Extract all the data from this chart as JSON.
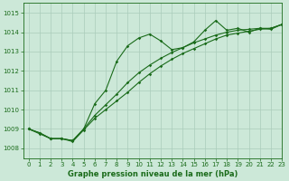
{
  "title": "Graphe pression niveau de la mer (hPa)",
  "bg_color": "#cce8d8",
  "grid_color": "#aaccbb",
  "line_color": "#1a6b1a",
  "xlim": [
    -0.5,
    23
  ],
  "ylim": [
    1007.5,
    1015.5
  ],
  "yticks": [
    1008,
    1009,
    1010,
    1011,
    1012,
    1013,
    1014,
    1015
  ],
  "xticks": [
    0,
    1,
    2,
    3,
    4,
    5,
    6,
    7,
    8,
    9,
    10,
    11,
    12,
    13,
    14,
    15,
    16,
    17,
    18,
    19,
    20,
    21,
    22,
    23
  ],
  "series1_x": [
    0,
    1,
    2,
    3,
    4,
    5,
    6,
    7,
    8,
    9,
    10,
    11,
    12,
    13,
    14,
    15,
    16,
    17,
    18,
    19,
    20,
    21,
    22,
    23
  ],
  "series1_y": [
    1009.0,
    1008.8,
    1008.5,
    1008.5,
    1008.4,
    1009.0,
    1010.3,
    1011.0,
    1012.5,
    1013.3,
    1013.7,
    1013.9,
    1013.55,
    1013.1,
    1013.2,
    1013.5,
    1014.1,
    1014.6,
    1014.1,
    1014.2,
    1014.0,
    1014.2,
    1014.15,
    1014.4
  ],
  "series2_x": [
    0,
    1,
    2,
    3,
    4,
    5,
    6,
    7,
    8,
    9,
    10,
    11,
    12,
    13,
    14,
    15,
    16,
    17,
    18,
    19,
    20,
    21,
    22,
    23
  ],
  "series2_y": [
    1009.0,
    1008.8,
    1008.5,
    1008.5,
    1008.4,
    1009.0,
    1009.7,
    1010.25,
    1010.8,
    1011.4,
    1011.9,
    1012.3,
    1012.65,
    1012.95,
    1013.2,
    1013.45,
    1013.65,
    1013.85,
    1014.0,
    1014.1,
    1014.15,
    1014.2,
    1014.2,
    1014.4
  ],
  "series3_x": [
    0,
    1,
    2,
    3,
    4,
    5,
    6,
    7,
    8,
    9,
    10,
    11,
    12,
    13,
    14,
    15,
    16,
    17,
    18,
    19,
    20,
    21,
    22,
    23
  ],
  "series3_y": [
    1009.0,
    1008.75,
    1008.5,
    1008.5,
    1008.35,
    1008.95,
    1009.55,
    1010.0,
    1010.45,
    1010.9,
    1011.4,
    1011.85,
    1012.25,
    1012.6,
    1012.9,
    1013.15,
    1013.4,
    1013.65,
    1013.85,
    1013.95,
    1014.05,
    1014.15,
    1014.2,
    1014.4
  ],
  "title_fontsize": 6.0,
  "tick_fontsize": 5.0,
  "linewidth": 0.8,
  "markersize": 1.8
}
